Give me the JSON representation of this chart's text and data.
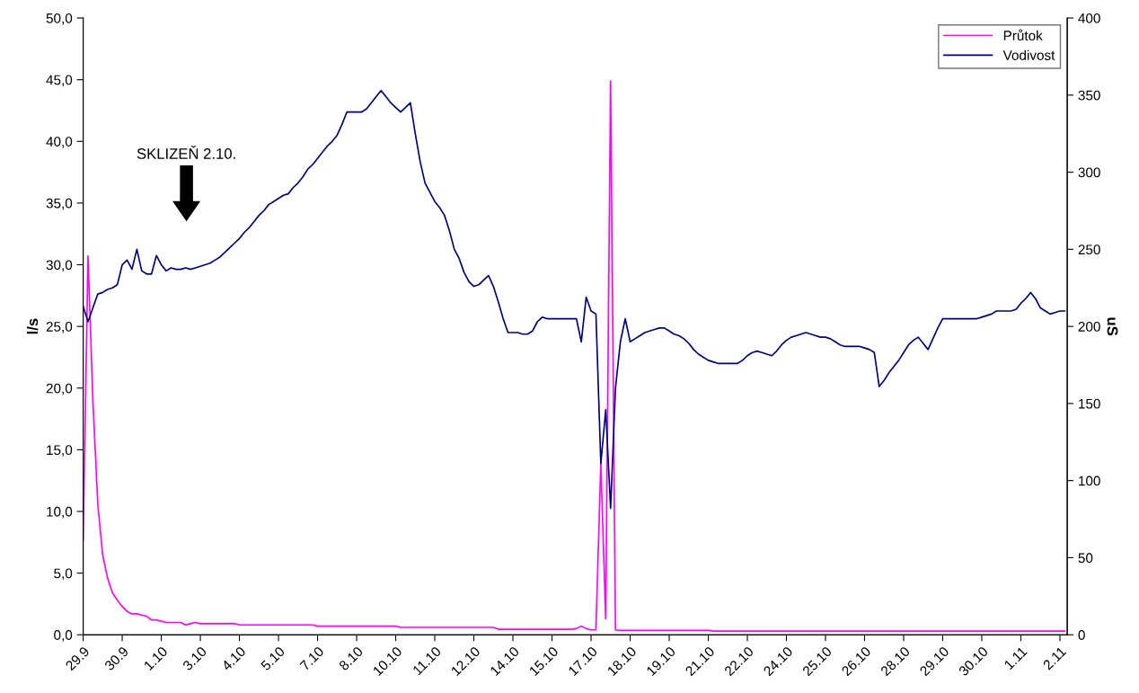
{
  "chart_data": {
    "type": "line",
    "ylabel": "l/s",
    "y2label": "uS",
    "categories": [
      "29.9",
      null,
      null,
      null,
      null,
      null,
      null,
      null,
      "30.9",
      null,
      null,
      null,
      null,
      null,
      null,
      null,
      "1.10",
      null,
      null,
      null,
      null,
      null,
      null,
      null,
      "3.10",
      null,
      null,
      null,
      null,
      null,
      null,
      null,
      "4.10",
      null,
      null,
      null,
      null,
      null,
      null,
      null,
      "5.10",
      null,
      null,
      null,
      null,
      null,
      null,
      null,
      "7.10",
      null,
      null,
      null,
      null,
      null,
      null,
      null,
      "8.10",
      null,
      null,
      null,
      null,
      null,
      null,
      null,
      "10.10",
      null,
      null,
      null,
      null,
      null,
      null,
      null,
      "11.10",
      null,
      null,
      null,
      null,
      null,
      null,
      null,
      "12.10",
      null,
      null,
      null,
      null,
      null,
      null,
      null,
      "14.10",
      null,
      null,
      null,
      null,
      null,
      null,
      null,
      "15.10",
      null,
      null,
      null,
      null,
      null,
      null,
      null,
      "17.10",
      null,
      null,
      null,
      null,
      null,
      null,
      null,
      "18.10",
      null,
      null,
      null,
      null,
      null,
      null,
      null,
      "19.10",
      null,
      null,
      null,
      null,
      null,
      null,
      null,
      "21.10",
      null,
      null,
      null,
      null,
      null,
      null,
      null,
      "22.10",
      null,
      null,
      null,
      null,
      null,
      null,
      null,
      "24.10",
      null,
      null,
      null,
      null,
      null,
      null,
      null,
      "25.10",
      null,
      null,
      null,
      null,
      null,
      null,
      null,
      "26.10",
      null,
      null,
      null,
      null,
      null,
      null,
      null,
      "28.10",
      null,
      null,
      null,
      null,
      null,
      null,
      null,
      "29.10",
      null,
      null,
      null,
      null,
      null,
      null,
      null,
      "30.10",
      null,
      null,
      null,
      null,
      null,
      null,
      null,
      "1.11",
      null,
      null,
      null,
      null,
      null,
      null,
      null,
      "2.11",
      null
    ],
    "ylim": [
      0,
      50
    ],
    "yticks": [
      {
        "value": 0,
        "label": "0,0"
      },
      {
        "value": 5,
        "label": "5,0"
      },
      {
        "value": 10,
        "label": "10,0"
      },
      {
        "value": 15,
        "label": "15,0"
      },
      {
        "value": 20,
        "label": "20,0"
      },
      {
        "value": 25,
        "label": "25,0"
      },
      {
        "value": 30,
        "label": "30,0"
      },
      {
        "value": 35,
        "label": "35,0"
      },
      {
        "value": 40,
        "label": "40,0"
      },
      {
        "value": 45,
        "label": "45,0"
      },
      {
        "value": 50,
        "label": "50,0"
      }
    ],
    "y2lim": [
      0,
      400
    ],
    "y2ticks": [
      0,
      50,
      100,
      150,
      200,
      250,
      300,
      350,
      400
    ],
    "legend": "top right",
    "marker": "none",
    "line_style": "solid",
    "annotations": [
      "SKLIZEŇ 2.10."
    ],
    "series": [
      {
        "name": "Průtok",
        "color": "#ff00ff",
        "values": [
          7.7,
          30.7,
          19,
          10.6,
          6.5,
          4.6,
          3.4,
          2.8,
          2.3,
          1.9,
          1.7,
          1.7,
          1.6,
          1.5,
          1.2,
          1.2,
          1.1,
          1.0,
          1.0,
          1.0,
          1.0,
          0.8,
          0.9,
          1.0,
          0.9,
          0.9,
          0.9,
          0.9,
          0.9,
          0.9,
          0.9,
          0.9,
          0.8,
          0.8,
          0.8,
          0.8,
          0.8,
          0.8,
          0.8,
          0.8,
          0.8,
          0.8,
          0.8,
          0.8,
          0.8,
          0.8,
          0.8,
          0.8,
          0.7,
          0.7,
          0.7,
          0.7,
          0.7,
          0.7,
          0.7,
          0.7,
          0.7,
          0.7,
          0.7,
          0.7,
          0.7,
          0.7,
          0.7,
          0.7,
          0.7,
          0.6,
          0.6,
          0.6,
          0.6,
          0.6,
          0.6,
          0.6,
          0.6,
          0.6,
          0.6,
          0.6,
          0.6,
          0.6,
          0.6,
          0.6,
          0.6,
          0.6,
          0.6,
          0.6,
          0.6,
          0.45,
          0.45,
          0.45,
          0.45,
          0.45,
          0.45,
          0.45,
          0.45,
          0.45,
          0.45,
          0.45,
          0.45,
          0.45,
          0.45,
          0.45,
          0.45,
          0.5,
          0.7,
          0.5,
          0.4,
          0.4,
          13.9,
          1.3,
          44.9,
          0.4,
          0.35,
          0.35,
          0.35,
          0.35,
          0.35,
          0.35,
          0.35,
          0.35,
          0.35,
          0.35,
          0.35,
          0.35,
          0.35,
          0.35,
          0.35,
          0.35,
          0.35,
          0.35,
          0.35,
          0.3,
          0.3,
          0.3,
          0.3,
          0.3,
          0.3,
          0.3,
          0.3,
          0.3,
          0.3,
          0.3,
          0.3,
          0.3,
          0.3,
          0.3,
          0.3,
          0.3,
          0.3,
          0.3,
          0.3,
          0.3,
          0.3,
          0.3,
          0.3,
          0.3,
          0.3,
          0.3,
          0.3,
          0.3,
          0.3,
          0.3,
          0.3,
          0.3,
          0.3,
          0.3,
          0.3,
          0.3,
          0.3,
          0.3,
          0.3,
          0.3,
          0.3,
          0.3,
          0.3,
          0.3,
          0.3,
          0.3,
          0.3,
          0.3,
          0.3,
          0.3,
          0.3,
          0.3,
          0.3,
          0.3,
          0.3,
          0.3,
          0.3,
          0.3,
          0.3,
          0.3,
          0.3,
          0.3,
          0.3,
          0.3,
          0.3,
          0.3,
          0.3,
          0.3,
          0.3,
          0.3,
          0.3,
          0.3
        ]
      },
      {
        "name": "Vodivost",
        "color": "#000080",
        "axis": "y2",
        "values": [
          213,
          203,
          212,
          221,
          222,
          224,
          225,
          227,
          240,
          243,
          237,
          250,
          236,
          234,
          234,
          246,
          240,
          236,
          238,
          237,
          237,
          238,
          237,
          238,
          239,
          240,
          241,
          243,
          245,
          248,
          251,
          254,
          257,
          261,
          264,
          268,
          272,
          275,
          279,
          281,
          283,
          285,
          286,
          290,
          293,
          297,
          302,
          305,
          309,
          313,
          317,
          320,
          324,
          331,
          339,
          339,
          339,
          339,
          341,
          345,
          349,
          353,
          349,
          345,
          342,
          339,
          342,
          345,
          325,
          307,
          293,
          287,
          281,
          277,
          272,
          262,
          250,
          244,
          235,
          229,
          226,
          227,
          230,
          233,
          226,
          216,
          205,
          196,
          196,
          196,
          195,
          195,
          197,
          203,
          206,
          205,
          205,
          205,
          205,
          205,
          205,
          205,
          190,
          219,
          210,
          208,
          111,
          146,
          82,
          160,
          190,
          205,
          190,
          192,
          194,
          196,
          197,
          198,
          199,
          199,
          197,
          195,
          194,
          192,
          189,
          185,
          182,
          180,
          178,
          177,
          176,
          176,
          176,
          176,
          176,
          178,
          181,
          183,
          184,
          183,
          182,
          181,
          184,
          188,
          191,
          193,
          194,
          195,
          196,
          195,
          194,
          193,
          193,
          192,
          190,
          188,
          187,
          187,
          187,
          187,
          186,
          185,
          183,
          161,
          165,
          170,
          174,
          178,
          183,
          188,
          191,
          193,
          189,
          185,
          192,
          199,
          205,
          205,
          205,
          205,
          205,
          205,
          205,
          205,
          206,
          207,
          208,
          210,
          210,
          210,
          210,
          211,
          215,
          218,
          222,
          218,
          212,
          210,
          208,
          209,
          210,
          210
        ]
      }
    ]
  }
}
